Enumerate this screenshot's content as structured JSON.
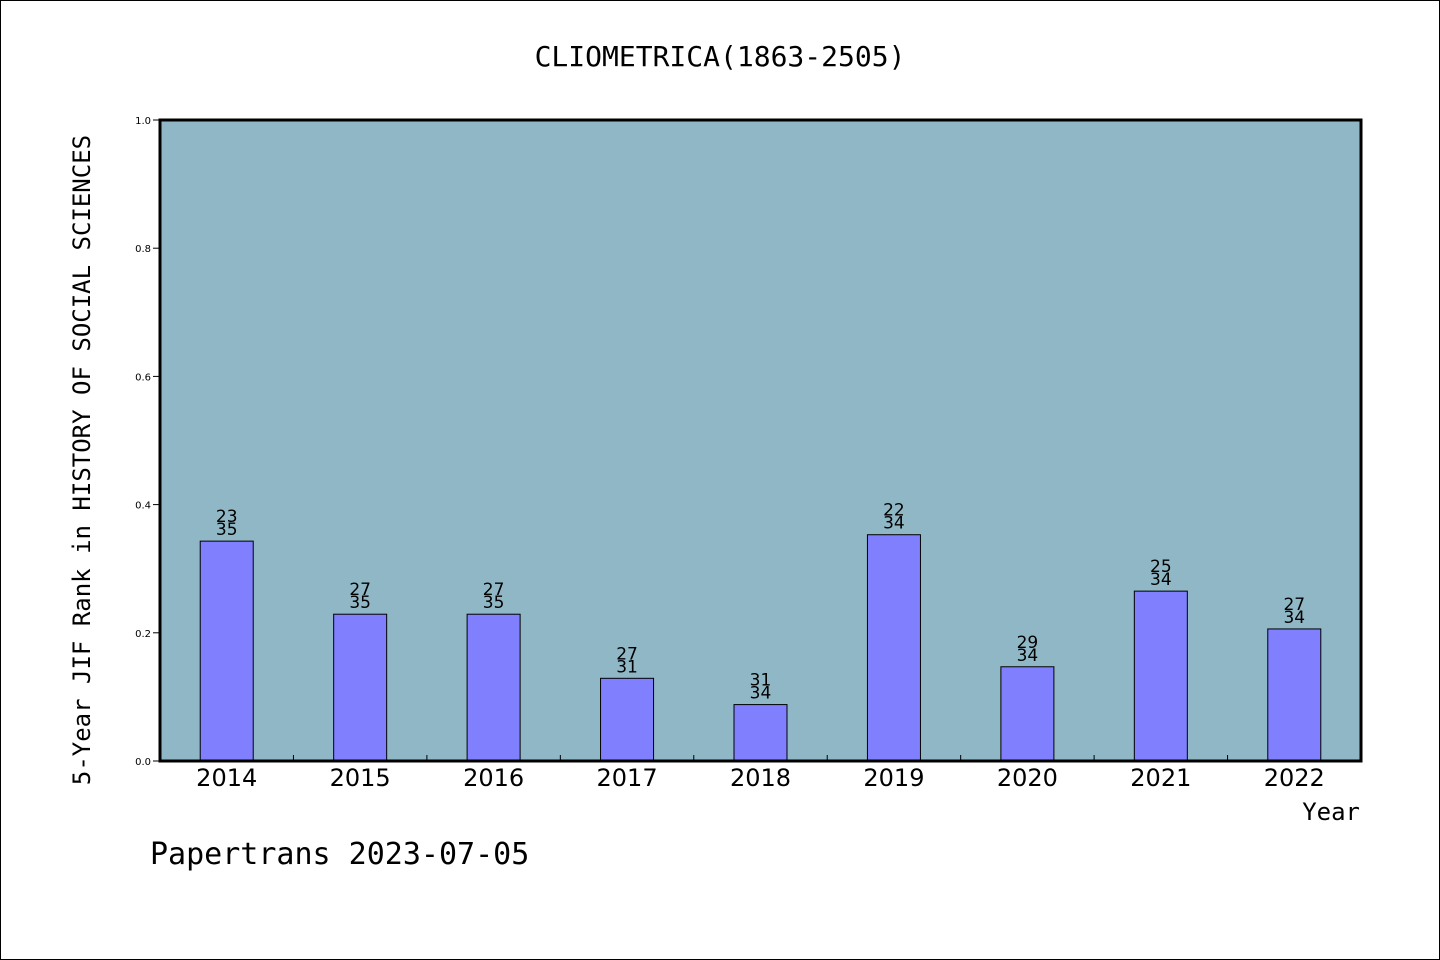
{
  "chart_data": {
    "type": "bar",
    "title": "CLIOMETRICA(1863-2505)",
    "xlabel": "Year",
    "ylabel": "5-Year JIF Rank in HISTORY OF SOCIAL SCIENCES",
    "ylim": [
      0,
      1.0
    ],
    "yticks": [
      "0.0",
      "0.2",
      "0.4",
      "0.6",
      "0.8",
      "1.0"
    ],
    "categories": [
      "2014",
      "2015",
      "2016",
      "2017",
      "2018",
      "2019",
      "2020",
      "2021",
      "2022"
    ],
    "values": [
      0.343,
      0.229,
      0.229,
      0.129,
      0.088,
      0.353,
      0.147,
      0.265,
      0.206
    ],
    "rank_labels": [
      {
        "rank": "23",
        "total": "35"
      },
      {
        "rank": "27",
        "total": "35"
      },
      {
        "rank": "27",
        "total": "35"
      },
      {
        "rank": "27",
        "total": "31"
      },
      {
        "rank": "31",
        "total": "34"
      },
      {
        "rank": "22",
        "total": "34"
      },
      {
        "rank": "29",
        "total": "34"
      },
      {
        "rank": "25",
        "total": "34"
      },
      {
        "rank": "27",
        "total": "34"
      }
    ],
    "grid": false,
    "colors": {
      "plot_background": "#8fb7c5",
      "bar_fill": "#8080ff",
      "bar_stroke": "#000000"
    }
  },
  "footer": {
    "credit": "Papertrans 2023-07-05"
  }
}
